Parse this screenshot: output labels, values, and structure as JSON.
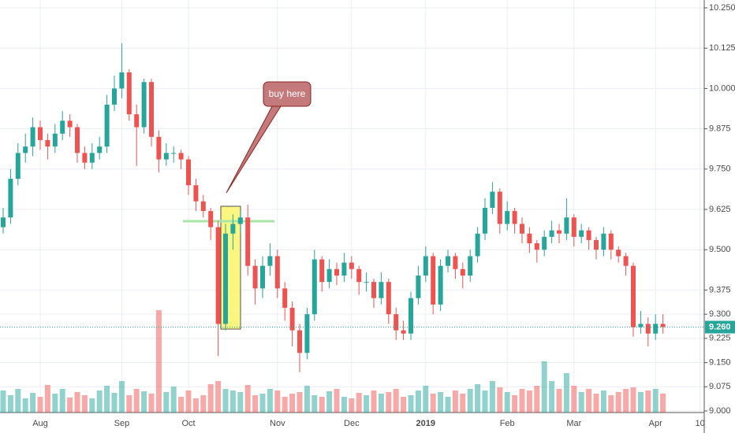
{
  "chart_data": {
    "type": "candlestick",
    "annotation": "buy here",
    "categories": [
      null,
      null,
      null,
      null,
      null,
      "Aug",
      null,
      null,
      null,
      null,
      null,
      null,
      null,
      null,
      null,
      null,
      "Sep",
      null,
      null,
      null,
      null,
      null,
      null,
      null,
      null,
      "Oct",
      null,
      null,
      null,
      null,
      null,
      null,
      null,
      null,
      null,
      null,
      null,
      "Nov",
      null,
      null,
      null,
      null,
      null,
      null,
      null,
      null,
      null,
      "Dec",
      null,
      null,
      null,
      null,
      null,
      null,
      null,
      null,
      null,
      "2019",
      null,
      null,
      null,
      null,
      null,
      null,
      null,
      null,
      null,
      null,
      "Feb",
      null,
      null,
      null,
      null,
      null,
      null,
      null,
      null,
      "Mar",
      null,
      null,
      null,
      null,
      null,
      null,
      null,
      null,
      null,
      null,
      "Apr",
      null,
      null,
      null,
      null,
      null,
      "10"
    ],
    "ohlc": [
      [
        9.57,
        9.63,
        9.55,
        9.6
      ],
      [
        9.6,
        9.75,
        9.58,
        9.72
      ],
      [
        9.72,
        9.83,
        9.7,
        9.8
      ],
      [
        9.8,
        9.86,
        9.77,
        9.82
      ],
      [
        9.82,
        9.91,
        9.79,
        9.88
      ],
      [
        9.88,
        9.9,
        9.81,
        9.84
      ],
      [
        9.84,
        9.86,
        9.78,
        9.82
      ],
      [
        9.82,
        9.89,
        9.8,
        9.86
      ],
      [
        9.86,
        9.93,
        9.84,
        9.9
      ],
      [
        9.9,
        9.92,
        9.85,
        9.88
      ],
      [
        9.88,
        9.89,
        9.77,
        9.8
      ],
      [
        9.8,
        9.82,
        9.75,
        9.77
      ],
      [
        9.77,
        9.83,
        9.75,
        9.8
      ],
      [
        9.8,
        9.85,
        9.78,
        9.82
      ],
      [
        9.82,
        9.98,
        9.8,
        9.95
      ],
      [
        9.95,
        10.04,
        9.93,
        10.0
      ],
      [
        10.0,
        10.14,
        9.97,
        10.05
      ],
      [
        10.05,
        10.06,
        9.9,
        9.92
      ],
      [
        9.92,
        9.95,
        9.76,
        9.88
      ],
      [
        9.88,
        10.03,
        9.86,
        10.02
      ],
      [
        10.02,
        10.03,
        9.82,
        9.85
      ],
      [
        9.85,
        9.87,
        9.74,
        9.78
      ],
      [
        9.78,
        9.83,
        9.76,
        9.8
      ],
      [
        9.8,
        9.82,
        9.77,
        9.8
      ],
      [
        9.8,
        9.81,
        9.75,
        9.78
      ],
      [
        9.78,
        9.79,
        9.67,
        9.7
      ],
      [
        9.7,
        9.72,
        9.62,
        9.65
      ],
      [
        9.65,
        9.67,
        9.6,
        9.62
      ],
      [
        9.62,
        9.63,
        9.53,
        9.57
      ],
      [
        9.57,
        9.59,
        9.17,
        9.27
      ],
      [
        9.27,
        9.58,
        9.25,
        9.55
      ],
      [
        9.55,
        9.61,
        9.5,
        9.58
      ],
      [
        9.58,
        9.62,
        9.55,
        9.6
      ],
      [
        9.6,
        9.64,
        9.42,
        9.45
      ],
      [
        9.45,
        9.47,
        9.33,
        9.38
      ],
      [
        9.38,
        9.48,
        9.35,
        9.45
      ],
      [
        9.45,
        9.52,
        9.42,
        9.48
      ],
      [
        9.48,
        9.5,
        9.35,
        9.38
      ],
      [
        9.38,
        9.4,
        9.28,
        9.32
      ],
      [
        9.32,
        9.34,
        9.2,
        9.25
      ],
      [
        9.25,
        9.27,
        9.12,
        9.18
      ],
      [
        9.18,
        9.32,
        9.16,
        9.3
      ],
      [
        9.3,
        9.5,
        9.28,
        9.47
      ],
      [
        9.47,
        9.48,
        9.37,
        9.4
      ],
      [
        9.4,
        9.47,
        9.38,
        9.44
      ],
      [
        9.44,
        9.46,
        9.39,
        9.42
      ],
      [
        9.42,
        9.49,
        9.4,
        9.46
      ],
      [
        9.46,
        9.48,
        9.41,
        9.44
      ],
      [
        9.44,
        9.45,
        9.36,
        9.4
      ],
      [
        9.4,
        9.43,
        9.37,
        9.4
      ],
      [
        9.4,
        9.41,
        9.32,
        9.35
      ],
      [
        9.35,
        9.43,
        9.33,
        9.4
      ],
      [
        9.4,
        9.41,
        9.27,
        9.3
      ],
      [
        9.3,
        9.32,
        9.22,
        9.25
      ],
      [
        9.25,
        9.28,
        9.22,
        9.24
      ],
      [
        9.24,
        9.37,
        9.22,
        9.35
      ],
      [
        9.35,
        9.45,
        9.33,
        9.42
      ],
      [
        9.42,
        9.51,
        9.4,
        9.48
      ],
      [
        9.48,
        9.49,
        9.3,
        9.33
      ],
      [
        9.33,
        9.47,
        9.31,
        9.45
      ],
      [
        9.45,
        9.5,
        9.43,
        9.48
      ],
      [
        9.48,
        9.49,
        9.41,
        9.44
      ],
      [
        9.44,
        9.46,
        9.38,
        9.42
      ],
      [
        9.42,
        9.5,
        9.4,
        9.48
      ],
      [
        9.48,
        9.57,
        9.46,
        9.55
      ],
      [
        9.55,
        9.66,
        9.53,
        9.63
      ],
      [
        9.63,
        9.71,
        9.61,
        9.68
      ],
      [
        9.68,
        9.69,
        9.55,
        9.58
      ],
      [
        9.58,
        9.65,
        9.56,
        9.62
      ],
      [
        9.62,
        9.63,
        9.55,
        9.58
      ],
      [
        9.58,
        9.6,
        9.52,
        9.55
      ],
      [
        9.55,
        9.57,
        9.49,
        9.52
      ],
      [
        9.52,
        9.53,
        9.46,
        9.5
      ],
      [
        9.5,
        9.56,
        9.48,
        9.54
      ],
      [
        9.54,
        9.59,
        9.52,
        9.56
      ],
      [
        9.56,
        9.58,
        9.52,
        9.55
      ],
      [
        9.55,
        9.66,
        9.53,
        9.6
      ],
      [
        9.6,
        9.61,
        9.51,
        9.54
      ],
      [
        9.54,
        9.58,
        9.52,
        9.56
      ],
      [
        9.56,
        9.57,
        9.5,
        9.53
      ],
      [
        9.53,
        9.54,
        9.47,
        9.5
      ],
      [
        9.5,
        9.57,
        9.48,
        9.55
      ],
      [
        9.55,
        9.56,
        9.47,
        9.5
      ],
      [
        9.5,
        9.51,
        9.46,
        9.48
      ],
      [
        9.48,
        9.49,
        9.42,
        9.45
      ],
      [
        9.45,
        9.46,
        9.23,
        9.26
      ],
      [
        9.26,
        9.31,
        9.24,
        9.27
      ],
      [
        9.27,
        9.29,
        9.2,
        9.24
      ],
      [
        9.24,
        9.3,
        9.22,
        9.27
      ],
      [
        9.27,
        9.3,
        9.24,
        9.26
      ],
      null,
      null,
      null,
      null,
      null
    ],
    "volume": [
      28,
      22,
      30,
      18,
      25,
      20,
      35,
      24,
      30,
      19,
      26,
      22,
      18,
      28,
      34,
      25,
      40,
      22,
      30,
      27,
      24,
      130,
      26,
      33,
      20,
      28,
      18,
      22,
      36,
      40,
      30,
      28,
      26,
      35,
      22,
      24,
      30,
      28,
      20,
      24,
      26,
      34,
      22,
      20,
      27,
      30,
      20,
      18,
      25,
      22,
      28,
      24,
      26,
      30,
      20,
      22,
      28,
      34,
      24,
      26,
      20,
      28,
      24,
      30,
      36,
      28,
      40,
      32,
      26,
      22,
      30,
      28,
      34,
      65,
      40,
      30,
      50,
      34,
      26,
      30,
      24,
      28,
      22,
      26,
      30,
      32,
      26,
      28,
      30,
      24,
      null,
      null,
      null,
      null,
      null
    ],
    "up_color": "#26a69a",
    "down_color": "#ef5350",
    "ylim": [
      9.0,
      10.25
    ],
    "yticks": [
      {
        "value": 10.25,
        "label": "10.250"
      },
      {
        "value": 10.125,
        "label": "10.125"
      },
      {
        "value": 10.0,
        "label": "10.000"
      },
      {
        "value": 9.875,
        "label": "9.875"
      },
      {
        "value": 9.75,
        "label": "9.750"
      },
      {
        "value": 9.625,
        "label": "9.625"
      },
      {
        "value": 9.5,
        "label": "9.500"
      },
      {
        "value": 9.375,
        "label": "9.375"
      },
      {
        "value": 9.3,
        "label": "9.300"
      },
      {
        "value": 9.225,
        "label": "9.225"
      },
      {
        "value": 9.15,
        "label": "9.150"
      },
      {
        "value": 9.075,
        "label": "9.075"
      },
      {
        "value": 9.0,
        "label": "9.000"
      }
    ],
    "last_price": {
      "value": 9.26,
      "label": "9.260"
    },
    "grid": true
  }
}
